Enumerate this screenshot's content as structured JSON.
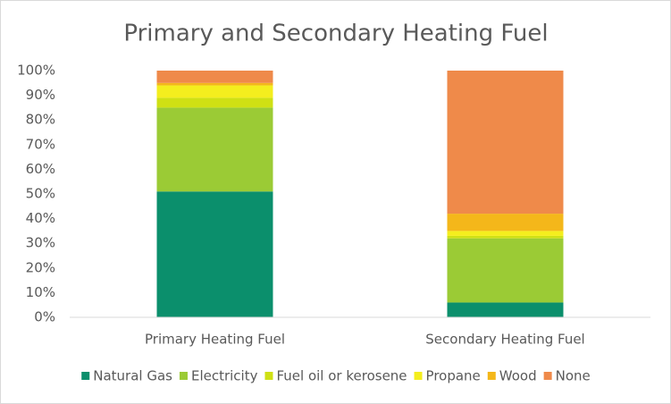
{
  "chart_data": {
    "type": "stacked_bar",
    "title": "Primary and Secondary Heating Fuel",
    "categories": [
      "Primary Heating Fuel",
      "Secondary Heating Fuel"
    ],
    "series": [
      {
        "name": "Natural Gas",
        "color": "#0b8f6c",
        "values": [
          51,
          6
        ]
      },
      {
        "name": "Electricity",
        "color": "#9bcb35",
        "values": [
          34,
          26
        ]
      },
      {
        "name": "Fuel oil or kerosene",
        "color": "#cfe014",
        "values": [
          4,
          1
        ]
      },
      {
        "name": "Propane",
        "color": "#f4ee1e",
        "values": [
          5,
          2
        ]
      },
      {
        "name": "Wood",
        "color": "#f4b71a",
        "values": [
          1,
          7
        ]
      },
      {
        "name": "None",
        "color": "#ef8a4a",
        "values": [
          5,
          58
        ]
      }
    ],
    "ylim": [
      0,
      100
    ],
    "yticks": [
      {
        "value": 0,
        "label": "0%"
      },
      {
        "value": 10,
        "label": "10%"
      },
      {
        "value": 20,
        "label": "20%"
      },
      {
        "value": 30,
        "label": "30%"
      },
      {
        "value": 40,
        "label": "40%"
      },
      {
        "value": 50,
        "label": "50%"
      },
      {
        "value": 60,
        "label": "60%"
      },
      {
        "value": 70,
        "label": "70%"
      },
      {
        "value": 80,
        "label": "80%"
      },
      {
        "value": 90,
        "label": "90%"
      },
      {
        "value": 100,
        "label": "100%"
      }
    ],
    "grid": false
  }
}
